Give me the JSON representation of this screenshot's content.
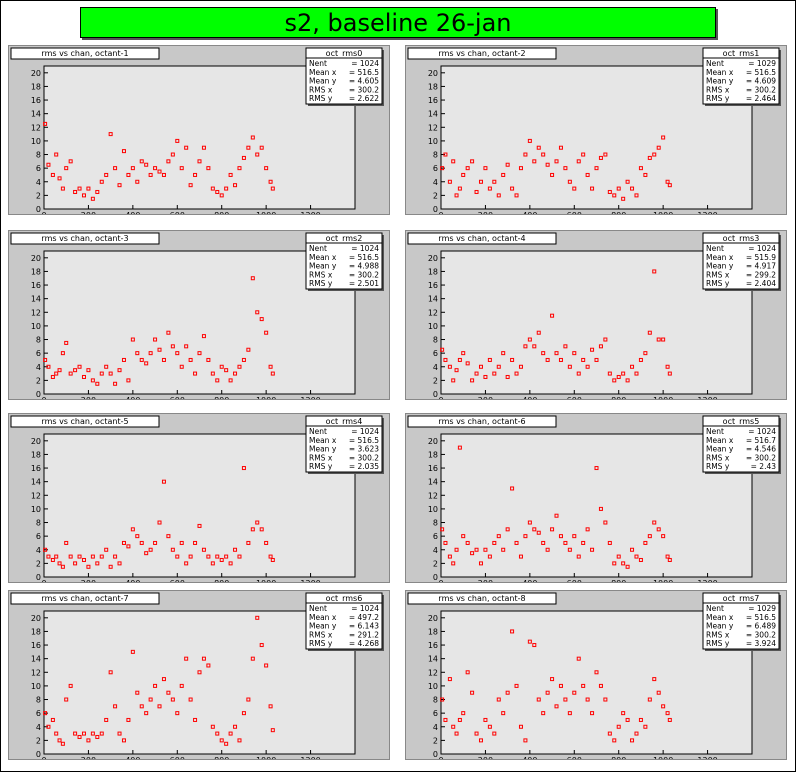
{
  "page_title": "s2, baseline 26-jan",
  "colors": {
    "title_bg": "#00ff00",
    "pad_bg": "#c8c8c8",
    "frame_bg": "#e6e6e6",
    "marker": "#ff0000"
  },
  "chart_data": [
    {
      "type": "scatter",
      "title": "rms vs chan, octant-1",
      "stats_name": "oct_rms0",
      "stats": [
        [
          "Nent",
          "= 1024"
        ],
        [
          "Mean x",
          "= 516.5"
        ],
        [
          "Mean y",
          "= 4.605"
        ],
        [
          "RMS x",
          "= 300.2"
        ],
        [
          "RMS y",
          "= 2.622"
        ]
      ],
      "xlim": [
        0,
        1400
      ],
      "ylim": [
        0,
        21
      ],
      "xticks": [
        0,
        200,
        400,
        600,
        800,
        1000,
        1200
      ],
      "yticks": [
        0,
        2,
        4,
        6,
        8,
        10,
        12,
        14,
        16,
        18,
        20
      ],
      "x": [
        5,
        20,
        40,
        55,
        70,
        85,
        100,
        120,
        140,
        160,
        180,
        200,
        220,
        240,
        260,
        280,
        300,
        320,
        340,
        360,
        380,
        400,
        420,
        440,
        460,
        480,
        500,
        520,
        540,
        560,
        580,
        600,
        620,
        640,
        660,
        680,
        700,
        720,
        740,
        760,
        780,
        800,
        820,
        840,
        860,
        880,
        900,
        920,
        940,
        960,
        980,
        1000,
        1020,
        1030
      ],
      "y": [
        12.5,
        6.5,
        5,
        8,
        4.5,
        3,
        6,
        7,
        2.5,
        3,
        2,
        3,
        1.5,
        2.5,
        4,
        5,
        11,
        6,
        3.5,
        8.5,
        5,
        6,
        4,
        7,
        6.5,
        5,
        6,
        5.5,
        5,
        7,
        8,
        10,
        6,
        9,
        3.5,
        5,
        7,
        9,
        6,
        3,
        2.5,
        2,
        3,
        5,
        3.5,
        6,
        7.5,
        9,
        10.5,
        8,
        9,
        6,
        4,
        3
      ]
    },
    {
      "type": "scatter",
      "title": "rms vs chan, octant-2",
      "stats_name": "oct_rms1",
      "stats": [
        [
          "Nent",
          "= 1029"
        ],
        [
          "Mean x",
          "= 516.5"
        ],
        [
          "Mean y",
          "= 4.609"
        ],
        [
          "RMS x",
          "= 300.2"
        ],
        [
          "RMS y",
          "= 2.464"
        ]
      ],
      "xlim": [
        0,
        1400
      ],
      "ylim": [
        0,
        21
      ],
      "xticks": [
        0,
        200,
        400,
        600,
        800,
        1000,
        1200
      ],
      "yticks": [
        0,
        2,
        4,
        6,
        8,
        10,
        12,
        14,
        16,
        18,
        20
      ],
      "x": [
        5,
        20,
        40,
        55,
        70,
        85,
        100,
        120,
        140,
        160,
        180,
        200,
        220,
        240,
        260,
        280,
        300,
        320,
        340,
        360,
        380,
        400,
        420,
        440,
        460,
        480,
        500,
        520,
        540,
        560,
        580,
        600,
        620,
        640,
        660,
        680,
        700,
        720,
        740,
        760,
        780,
        800,
        820,
        840,
        860,
        880,
        900,
        920,
        940,
        960,
        980,
        1000,
        1020,
        1030
      ],
      "y": [
        6,
        8,
        4,
        7,
        2,
        3,
        5,
        6,
        7,
        2.5,
        4,
        6,
        3,
        4,
        2,
        5,
        6.5,
        3,
        2,
        6,
        8,
        10,
        7,
        9,
        8,
        6.5,
        5,
        7,
        9,
        6,
        4,
        3,
        7,
        8,
        5,
        3,
        6,
        7.5,
        8,
        2.5,
        2,
        3,
        1.5,
        4,
        3,
        2,
        6,
        5,
        7.5,
        8,
        9,
        10.5,
        4,
        3.5
      ]
    },
    {
      "type": "scatter",
      "title": "rms vs chan, octant-3",
      "stats_name": "oct_rms2",
      "stats": [
        [
          "Nent",
          "= 1024"
        ],
        [
          "Mean x",
          "= 516.5"
        ],
        [
          "Mean y",
          "= 4.988"
        ],
        [
          "RMS x",
          "= 300.2"
        ],
        [
          "RMS y",
          "= 2.501"
        ]
      ],
      "xlim": [
        0,
        1400
      ],
      "ylim": [
        0,
        21
      ],
      "xticks": [
        0,
        200,
        400,
        600,
        800,
        1000,
        1200
      ],
      "yticks": [
        0,
        2,
        4,
        6,
        8,
        10,
        12,
        14,
        16,
        18,
        20
      ],
      "x": [
        5,
        20,
        40,
        55,
        70,
        85,
        100,
        120,
        140,
        160,
        180,
        200,
        220,
        240,
        260,
        280,
        300,
        320,
        340,
        360,
        380,
        400,
        420,
        440,
        460,
        480,
        500,
        520,
        540,
        560,
        580,
        600,
        620,
        640,
        660,
        680,
        700,
        720,
        740,
        760,
        780,
        800,
        820,
        840,
        860,
        880,
        900,
        920,
        940,
        960,
        980,
        1000,
        1020,
        1030
      ],
      "y": [
        5,
        4,
        2.5,
        3,
        3.5,
        6,
        7.5,
        3,
        3.5,
        4,
        2.5,
        3.5,
        2,
        1.5,
        3,
        4,
        3,
        1.5,
        3.5,
        5,
        2,
        8,
        6,
        5,
        4.5,
        6,
        8,
        6.5,
        5,
        9,
        7,
        6,
        4,
        7,
        5,
        3,
        6,
        8.5,
        5,
        3,
        2,
        4,
        3.5,
        2,
        3,
        4,
        5,
        6.5,
        17,
        12,
        11,
        9,
        4,
        3
      ]
    },
    {
      "type": "scatter",
      "title": "rms vs chan, octant-4",
      "stats_name": "oct_rms3",
      "stats": [
        [
          "Nent",
          "= 1024"
        ],
        [
          "Mean x",
          "= 515.9"
        ],
        [
          "Mean y",
          "= 4.917"
        ],
        [
          "RMS x",
          "= 299.2"
        ],
        [
          "RMS y",
          "= 2.404"
        ]
      ],
      "xlim": [
        0,
        1400
      ],
      "ylim": [
        0,
        21
      ],
      "xticks": [
        0,
        200,
        400,
        600,
        800,
        1000,
        1200
      ],
      "yticks": [
        0,
        2,
        4,
        6,
        8,
        10,
        12,
        14,
        16,
        18,
        20
      ],
      "x": [
        5,
        20,
        40,
        55,
        70,
        85,
        100,
        120,
        140,
        160,
        180,
        200,
        220,
        240,
        260,
        280,
        300,
        320,
        340,
        360,
        380,
        400,
        420,
        440,
        460,
        480,
        500,
        520,
        540,
        560,
        580,
        600,
        620,
        640,
        660,
        680,
        700,
        720,
        740,
        760,
        780,
        800,
        820,
        840,
        860,
        880,
        900,
        920,
        940,
        960,
        980,
        1000,
        1020,
        1030
      ],
      "y": [
        6.5,
        5,
        4,
        2,
        3.5,
        5,
        6,
        4.5,
        2,
        3,
        4,
        2.5,
        5,
        3,
        4,
        6,
        2.5,
        5,
        3,
        4,
        7,
        8,
        7,
        9,
        6,
        5,
        11.5,
        6,
        5,
        7,
        4,
        6,
        3,
        5,
        4,
        6.5,
        5,
        7,
        8,
        3,
        2,
        2.5,
        3,
        2,
        4,
        3,
        5,
        6,
        9,
        18,
        8,
        8,
        4,
        3
      ]
    },
    {
      "type": "scatter",
      "title": "rms vs chan, octant-5",
      "stats_name": "oct_rms4",
      "stats": [
        [
          "Nent",
          "= 1024"
        ],
        [
          "Mean x",
          "= 516.5"
        ],
        [
          "Mean y",
          "= 3.623"
        ],
        [
          "RMS x",
          "= 300.2"
        ],
        [
          "RMS y",
          "= 2.035"
        ]
      ],
      "xlim": [
        0,
        1400
      ],
      "ylim": [
        0,
        21
      ],
      "xticks": [
        0,
        200,
        400,
        600,
        800,
        1000,
        1200
      ],
      "yticks": [
        0,
        2,
        4,
        6,
        8,
        10,
        12,
        14,
        16,
        18,
        20
      ],
      "x": [
        5,
        20,
        40,
        55,
        70,
        85,
        100,
        120,
        140,
        160,
        180,
        200,
        220,
        240,
        260,
        280,
        300,
        320,
        340,
        360,
        380,
        400,
        420,
        440,
        460,
        480,
        500,
        520,
        540,
        560,
        580,
        600,
        620,
        640,
        660,
        680,
        700,
        720,
        740,
        760,
        780,
        800,
        820,
        840,
        860,
        880,
        900,
        920,
        940,
        960,
        980,
        1000,
        1020,
        1030
      ],
      "y": [
        4,
        3,
        2.5,
        3,
        2,
        1.5,
        5,
        3,
        2,
        3,
        2.5,
        1.5,
        3,
        2,
        3,
        4,
        1.5,
        3,
        2,
        5,
        4.5,
        7,
        6,
        5,
        3.5,
        4,
        5,
        8,
        14,
        6,
        4,
        3,
        5,
        2,
        3,
        5,
        7.5,
        4,
        3,
        2,
        3,
        2.5,
        3,
        2,
        4,
        3,
        16,
        5,
        7,
        8,
        7,
        5,
        3,
        2.5
      ]
    },
    {
      "type": "scatter",
      "title": "rms vs chan, octant-6",
      "stats_name": "oct_rms5",
      "stats": [
        [
          "Nent",
          "= 1024"
        ],
        [
          "Mean x",
          "= 516.7"
        ],
        [
          "Mean y",
          "= 4.546"
        ],
        [
          "RMS x",
          "= 300.2"
        ],
        [
          "RMS y",
          "= 2.43"
        ]
      ],
      "xlim": [
        0,
        1400
      ],
      "ylim": [
        0,
        21
      ],
      "xticks": [
        0,
        200,
        400,
        600,
        800,
        1000,
        1200
      ],
      "yticks": [
        0,
        2,
        4,
        6,
        8,
        10,
        12,
        14,
        16,
        18,
        20
      ],
      "x": [
        5,
        20,
        40,
        55,
        70,
        85,
        100,
        120,
        140,
        160,
        180,
        200,
        220,
        240,
        260,
        280,
        300,
        320,
        340,
        360,
        380,
        400,
        420,
        440,
        460,
        480,
        500,
        520,
        540,
        560,
        580,
        600,
        620,
        640,
        660,
        680,
        700,
        720,
        740,
        760,
        780,
        800,
        820,
        840,
        860,
        880,
        900,
        920,
        940,
        960,
        980,
        1000,
        1020,
        1030
      ],
      "y": [
        7,
        5,
        3,
        2,
        4,
        19,
        6,
        5,
        3.5,
        4,
        2,
        4,
        3,
        5,
        6,
        4,
        7,
        13,
        5,
        3,
        6,
        8,
        7,
        6.5,
        5,
        4,
        7,
        9,
        6,
        5,
        4,
        6,
        3,
        5,
        7,
        4,
        16,
        10,
        8,
        5,
        2,
        3,
        2,
        1.5,
        4,
        3,
        2.5,
        5,
        6,
        8,
        7,
        6,
        3,
        2.5
      ]
    },
    {
      "type": "scatter",
      "title": "rms vs chan, octant-7",
      "stats_name": "oct_rms6",
      "stats": [
        [
          "Nent",
          "= 1024"
        ],
        [
          "Mean x",
          "= 497.2"
        ],
        [
          "Mean y",
          "= 6.143"
        ],
        [
          "RMS x",
          "= 291.2"
        ],
        [
          "RMS y",
          "= 4.268"
        ]
      ],
      "xlim": [
        0,
        1400
      ],
      "ylim": [
        0,
        21
      ],
      "xticks": [
        0,
        200,
        400,
        600,
        800,
        1000,
        1200
      ],
      "yticks": [
        0,
        2,
        4,
        6,
        8,
        10,
        12,
        14,
        16,
        18,
        20
      ],
      "x": [
        5,
        20,
        40,
        55,
        70,
        85,
        100,
        120,
        140,
        160,
        180,
        200,
        220,
        240,
        260,
        280,
        300,
        320,
        340,
        360,
        380,
        400,
        420,
        440,
        460,
        480,
        500,
        520,
        540,
        560,
        580,
        600,
        620,
        640,
        660,
        680,
        700,
        720,
        740,
        760,
        780,
        800,
        820,
        840,
        860,
        880,
        900,
        920,
        940,
        960,
        980,
        1000,
        1020,
        1030
      ],
      "y": [
        6,
        4,
        5,
        3,
        2,
        1.5,
        8,
        10,
        3,
        2.5,
        3,
        2,
        3,
        2.5,
        3,
        5,
        12,
        7,
        3,
        2,
        5,
        15,
        9,
        7,
        6,
        8,
        10,
        7,
        11,
        9,
        8,
        6,
        10,
        14,
        8,
        5,
        12,
        14,
        13,
        4,
        3,
        2,
        1.5,
        3,
        4,
        2,
        6,
        8,
        14,
        20,
        16,
        13,
        7,
        3.5
      ]
    },
    {
      "type": "scatter",
      "title": "rms vs chan, octant-8",
      "stats_name": "oct_rms7",
      "stats": [
        [
          "Nent",
          "= 1029"
        ],
        [
          "Mean x",
          "= 516.5"
        ],
        [
          "Mean y",
          "= 6.489"
        ],
        [
          "RMS x",
          "= 300.2"
        ],
        [
          "RMS y",
          "= 3.924"
        ]
      ],
      "xlim": [
        0,
        1400
      ],
      "ylim": [
        0,
        21
      ],
      "xticks": [
        0,
        200,
        400,
        600,
        800,
        1000,
        1200
      ],
      "yticks": [
        0,
        2,
        4,
        6,
        8,
        10,
        12,
        14,
        16,
        18,
        20
      ],
      "x": [
        5,
        20,
        40,
        55,
        70,
        85,
        100,
        120,
        140,
        160,
        180,
        200,
        220,
        240,
        260,
        280,
        300,
        320,
        340,
        360,
        380,
        400,
        420,
        440,
        460,
        480,
        500,
        520,
        540,
        560,
        580,
        600,
        620,
        640,
        660,
        680,
        700,
        720,
        740,
        760,
        780,
        800,
        820,
        840,
        860,
        880,
        900,
        920,
        940,
        960,
        980,
        1000,
        1020,
        1030
      ],
      "y": [
        8,
        5,
        11,
        4,
        3,
        5,
        6,
        12,
        9,
        3,
        2,
        5,
        4,
        3,
        8,
        6,
        9,
        18,
        10,
        4,
        2,
        16.5,
        16,
        8,
        6,
        9,
        11,
        7,
        10,
        8,
        6,
        9,
        14,
        10,
        8,
        6,
        12,
        10,
        8,
        3,
        2,
        4,
        6,
        5,
        2,
        3,
        5,
        4,
        8,
        11,
        9,
        7,
        6,
        5
      ]
    }
  ]
}
